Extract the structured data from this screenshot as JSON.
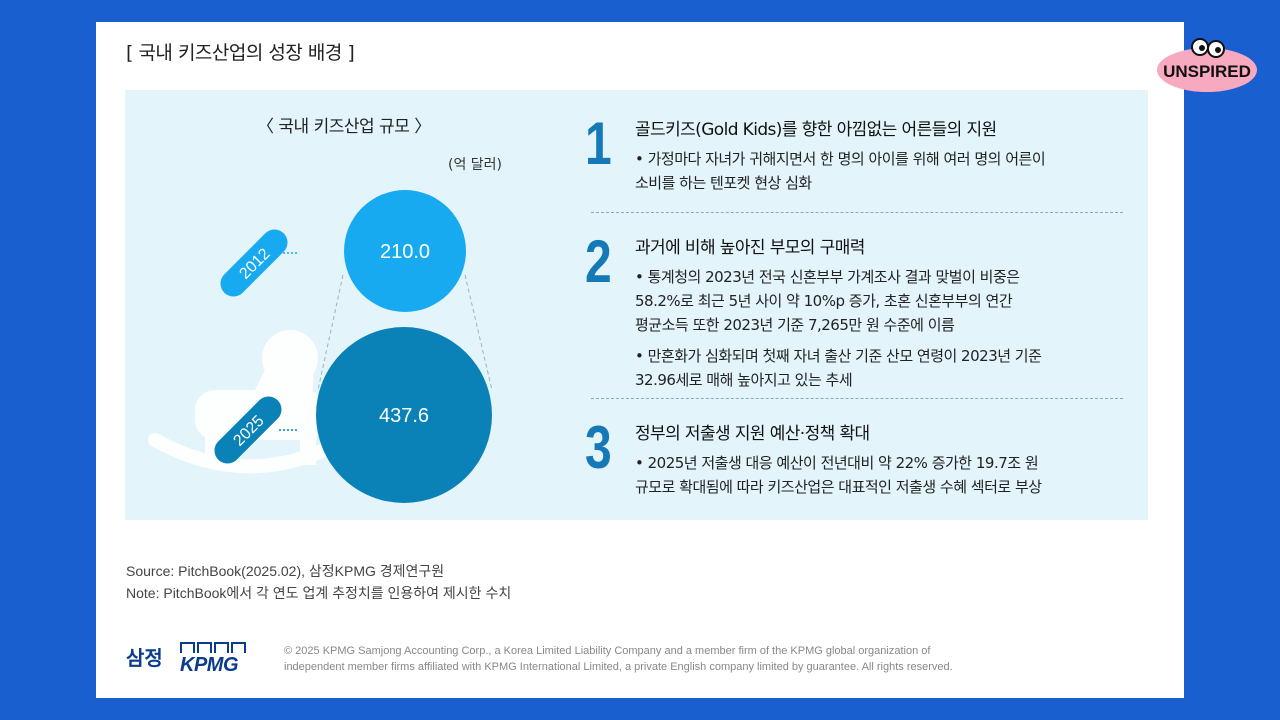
{
  "slide": {
    "title": "[ 국내 키즈산업의 성장 배경 ]"
  },
  "chart_data": {
    "type": "bubble",
    "title": "〈 국내 키즈산업 규모 〉",
    "unit": "(억 달러)",
    "categories": [
      "2012",
      "2025"
    ],
    "values": [
      210.0,
      437.6
    ],
    "value_labels": [
      "210.0",
      "437.6"
    ],
    "colors": [
      "#17aaf0",
      "#0a82b8"
    ]
  },
  "items": [
    {
      "number": "1",
      "heading": "골드키즈(Gold Kids)를 향한 아낌없는 어른들의 지원",
      "bullets": [
        [
          "• 가정마다 자녀가 귀해지면서 한 명의 아이를 위해 여러 명의 어른이",
          "소비를 하는 텐포켓 현상 심화"
        ]
      ]
    },
    {
      "number": "2",
      "heading": "과거에 비해 높아진 부모의 구매력",
      "bullets": [
        [
          "• 통계청의 2023년 전국 신혼부부 가계조사 결과 맞벌이 비중은",
          "58.2%로 최근 5년 사이 약 10%p 증가, 초혼 신혼부부의 연간",
          "평균소득 또한 2023년 기준 7,265만 원 수준에 이름"
        ],
        [
          "• 만혼화가 심화되며 첫째 자녀 출산 기준 산모 연령이 2023년 기준",
          "32.96세로 매해 높아지고 있는 추세"
        ]
      ]
    },
    {
      "number": "3",
      "heading": "정부의 저출생 지원 예산·정책 확대",
      "bullets": [
        [
          "• 2025년 저출생 대응 예산이 전년대비 약 22% 증가한 19.7조 원",
          "규모로 확대됨에 따라 키즈산업은 대표적인 저출생 수혜 섹터로 부상"
        ]
      ]
    }
  ],
  "source": {
    "line1": "Source: PitchBook(2025.02), 삼정KPMG 경제연구원",
    "line2": "Note: PitchBook에서 각 연도 업계 추정치를 인용하여 제시한 수치"
  },
  "footer": {
    "brand_kr": "삼정",
    "brand_en": "KPMG",
    "copyright_line1": "© 2025 KPMG Samjong Accounting Corp., a Korea Limited Liability Company and a member firm of the KPMG global organization of",
    "copyright_line2": "independent member firms affiliated with KPMG International Limited, a private English company limited by guarantee. All rights reserved."
  },
  "badge": {
    "text": "UNSPIRED"
  }
}
